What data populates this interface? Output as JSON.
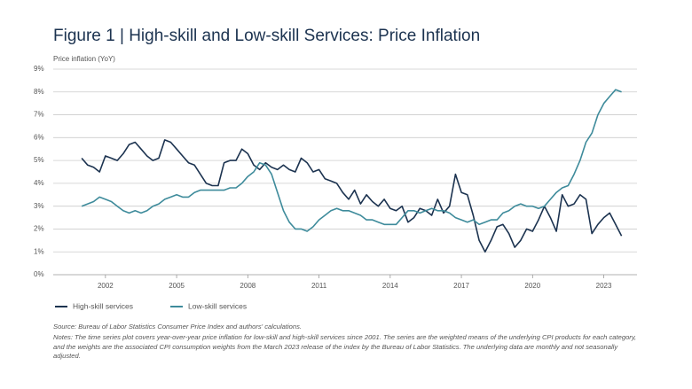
{
  "chart_data": {
    "type": "line",
    "title": "Figure 1 | High-skill and Low-skill Services: Price Inflation",
    "y_label": "Price inflation (YoY)",
    "source": "Source: Bureau of Labor Statistics Consumer Price Index and authors' calculations.",
    "notes": "Notes: The time series plot covers year-over-year price inflation for low-skill and high-skill services since 2001. The series are the weighted means of the underlying CPI products for each category, and the weights are the associated CPI consumption weights from the March 2023 release of the index by the Bureau of Labor Statistics. The underlying data are monthly and not seasonally adjusted.",
    "x": [
      2001,
      2001.25,
      2001.5,
      2001.75,
      2002,
      2002.25,
      2002.5,
      2002.75,
      2003,
      2003.25,
      2003.5,
      2003.75,
      2004,
      2004.25,
      2004.5,
      2004.75,
      2005,
      2005.25,
      2005.5,
      2005.75,
      2006,
      2006.25,
      2006.5,
      2006.75,
      2007,
      2007.25,
      2007.5,
      2007.75,
      2008,
      2008.25,
      2008.5,
      2008.75,
      2009,
      2009.25,
      2009.5,
      2009.75,
      2010,
      2010.25,
      2010.5,
      2010.75,
      2011,
      2011.25,
      2011.5,
      2011.75,
      2012,
      2012.25,
      2012.5,
      2012.75,
      2013,
      2013.25,
      2013.5,
      2013.75,
      2014,
      2014.25,
      2014.5,
      2014.75,
      2015,
      2015.25,
      2015.5,
      2015.75,
      2016,
      2016.25,
      2016.5,
      2016.75,
      2017,
      2017.25,
      2017.5,
      2017.75,
      2018,
      2018.25,
      2018.5,
      2018.75,
      2019,
      2019.25,
      2019.5,
      2019.75,
      2020,
      2020.25,
      2020.5,
      2020.75,
      2021,
      2021.25,
      2021.5,
      2021.75,
      2022,
      2022.25,
      2022.5,
      2022.75,
      2023,
      2023.25,
      2023.5,
      2023.75
    ],
    "series": [
      {
        "name": "High-skill services",
        "color": "#1c3350",
        "values": [
          5.1,
          4.8,
          4.7,
          4.5,
          5.2,
          5.1,
          5.0,
          5.3,
          5.7,
          5.8,
          5.5,
          5.2,
          5.0,
          5.1,
          5.9,
          5.8,
          5.5,
          5.2,
          4.9,
          4.8,
          4.4,
          4.0,
          3.9,
          3.9,
          4.9,
          5.0,
          5.0,
          5.5,
          5.3,
          4.8,
          4.6,
          4.9,
          4.7,
          4.6,
          4.8,
          4.6,
          4.5,
          5.1,
          4.9,
          4.5,
          4.6,
          4.2,
          4.1,
          4.0,
          3.6,
          3.3,
          3.7,
          3.1,
          3.5,
          3.2,
          3.0,
          3.3,
          2.9,
          2.8,
          3.0,
          2.3,
          2.5,
          2.9,
          2.8,
          2.6,
          3.3,
          2.7,
          3.0,
          4.4,
          3.6,
          3.5,
          2.6,
          1.5,
          1.0,
          1.5,
          2.1,
          2.2,
          1.8,
          1.2,
          1.5,
          2.0,
          1.9,
          2.4,
          3.0,
          2.5,
          1.9,
          3.5,
          3.0,
          3.1,
          3.5,
          3.3,
          1.8,
          2.2,
          2.5,
          2.7,
          2.2,
          1.7
        ]
      },
      {
        "name": "Low-skill services",
        "color": "#3e8b9b",
        "values": [
          3.0,
          3.1,
          3.2,
          3.4,
          3.3,
          3.2,
          3.0,
          2.8,
          2.7,
          2.8,
          2.7,
          2.8,
          3.0,
          3.1,
          3.3,
          3.4,
          3.5,
          3.4,
          3.4,
          3.6,
          3.7,
          3.7,
          3.7,
          3.7,
          3.7,
          3.8,
          3.8,
          4.0,
          4.3,
          4.5,
          4.9,
          4.8,
          4.4,
          3.6,
          2.8,
          2.3,
          2.0,
          2.0,
          1.9,
          2.1,
          2.4,
          2.6,
          2.8,
          2.9,
          2.8,
          2.8,
          2.7,
          2.6,
          2.4,
          2.4,
          2.3,
          2.2,
          2.2,
          2.2,
          2.5,
          2.8,
          2.8,
          2.7,
          2.8,
          2.9,
          2.8,
          2.8,
          2.7,
          2.5,
          2.4,
          2.3,
          2.4,
          2.2,
          2.3,
          2.4,
          2.4,
          2.7,
          2.8,
          3.0,
          3.1,
          3.0,
          3.0,
          2.9,
          3.0,
          3.3,
          3.6,
          3.8,
          3.9,
          4.4,
          5.0,
          5.8,
          6.2,
          7.0,
          7.5,
          7.8,
          8.1,
          8.0
        ]
      }
    ],
    "xlim": [
      1999.8,
      2024.4
    ],
    "xticks": [
      2002,
      2005,
      2008,
      2011,
      2014,
      2017,
      2020,
      2023
    ],
    "ylim": [
      0,
      9
    ],
    "yticks": [
      {
        "value": 0,
        "label": "0%"
      },
      {
        "value": 1,
        "label": "1%"
      },
      {
        "value": 2,
        "label": "2%"
      },
      {
        "value": 3,
        "label": "3%"
      },
      {
        "value": 4,
        "label": "4%"
      },
      {
        "value": 5,
        "label": "5%"
      },
      {
        "value": 6,
        "label": "6%"
      },
      {
        "value": 7,
        "label": "7%"
      },
      {
        "value": 8,
        "label": "8%"
      },
      {
        "value": 9,
        "label": "9%"
      }
    ],
    "grid": true,
    "legend": "bottom-left"
  }
}
